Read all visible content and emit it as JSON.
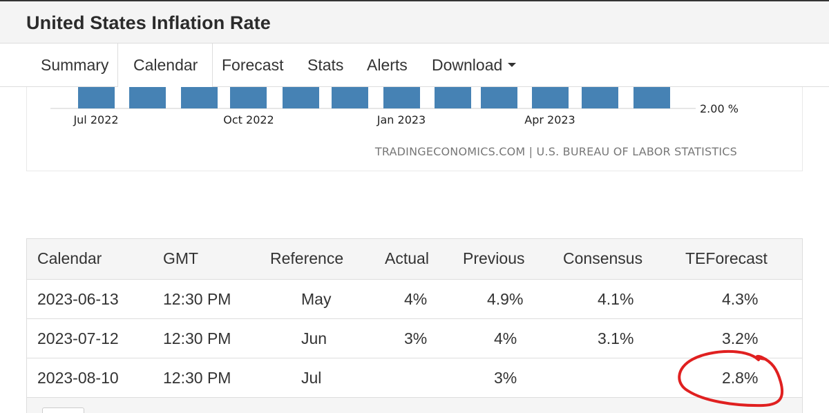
{
  "header": {
    "title": "United States Inflation Rate"
  },
  "tabs": [
    {
      "label": "Summary",
      "active": false
    },
    {
      "label": "Calendar",
      "active": true
    },
    {
      "label": "Forecast",
      "active": false
    },
    {
      "label": "Stats",
      "active": false
    },
    {
      "label": "Alerts",
      "active": false
    },
    {
      "label": "Download",
      "active": false
    }
  ],
  "chart_data": {
    "type": "bar",
    "x_tick_labels": [
      "Jul 2022",
      "Oct 2022",
      "Jan 2023",
      "Apr 2023"
    ],
    "y_tick_label": "2.00 %",
    "bar_count": 12,
    "bar_color": "#4682b4",
    "source": "TRADINGECONOMICS.COM | U.S. BUREAU OF LABOR STATISTICS"
  },
  "table": {
    "headers": [
      "Calendar",
      "GMT",
      "Reference",
      "Actual",
      "Previous",
      "Consensus",
      "TEForecast"
    ],
    "rows": [
      [
        "2023-06-13",
        "12:30 PM",
        "May",
        "4%",
        "4.9%",
        "4.1%",
        "4.3%"
      ],
      [
        "2023-07-12",
        "12:30 PM",
        "Jun",
        "3%",
        "4%",
        "3.1%",
        "3.2%"
      ],
      [
        "2023-08-10",
        "12:30 PM",
        "Jul",
        "",
        "3%",
        "",
        "2.8%"
      ]
    ]
  },
  "annotation": {
    "color": "#e02020",
    "circled_value": "2.8%"
  }
}
